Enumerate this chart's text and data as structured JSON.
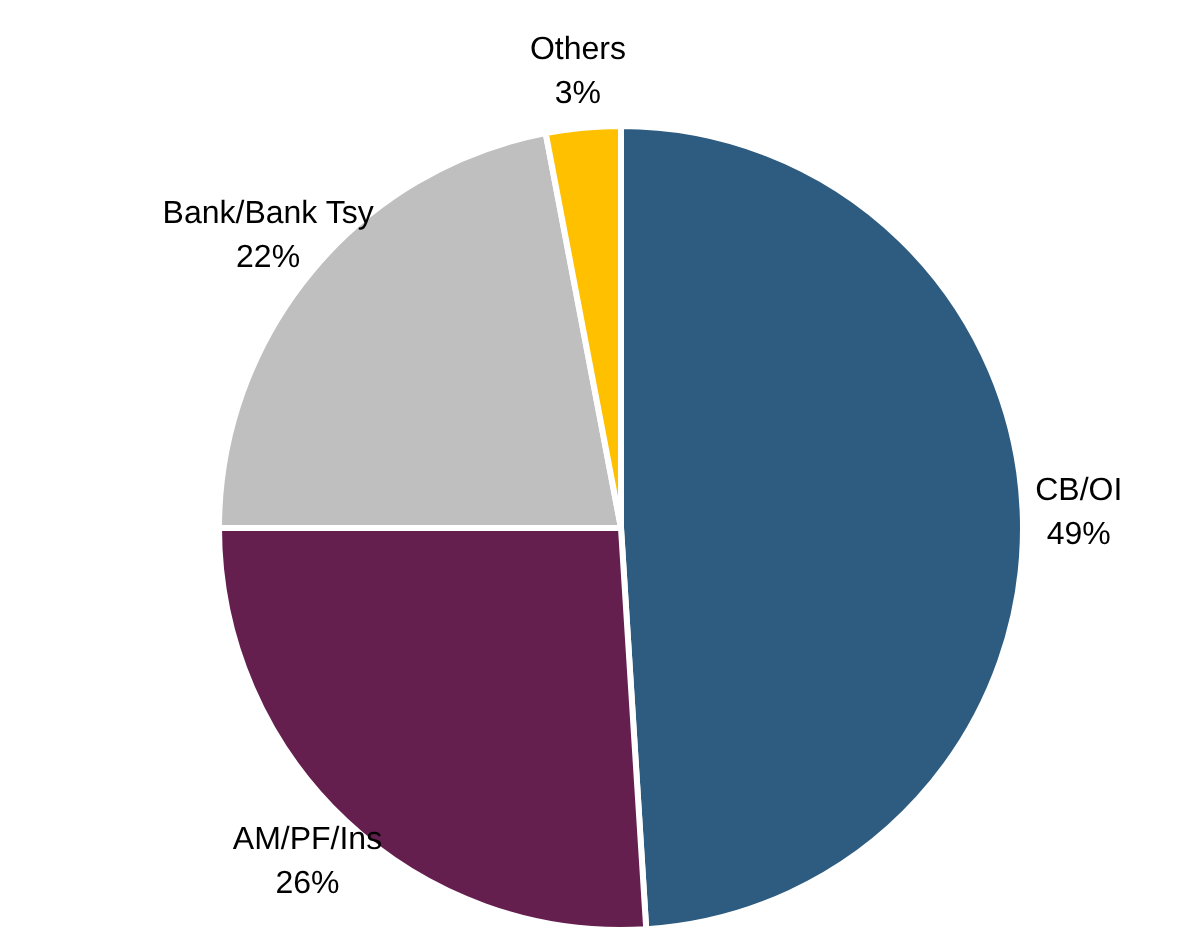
{
  "chart_data": {
    "type": "pie",
    "categories": [
      "CB/OI",
      "AM/PF/Ins",
      "Bank/Bank Tsy",
      "Others"
    ],
    "values": [
      49,
      26,
      22,
      3
    ],
    "colors": [
      "#2e5c80",
      "#651f4f",
      "#bfbfbf",
      "#ffc000"
    ],
    "value_labels": [
      "49%",
      "26%",
      "22%",
      "3%"
    ],
    "legend": false
  }
}
